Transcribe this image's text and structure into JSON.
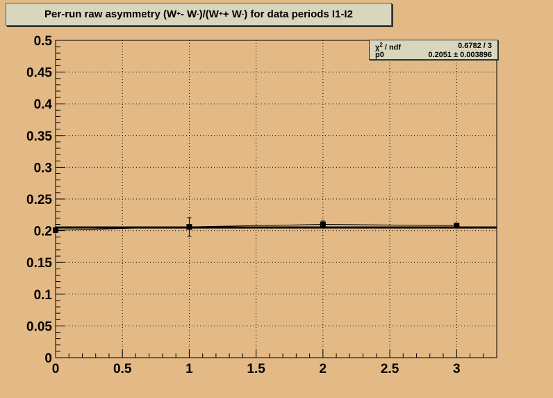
{
  "chart_data": {
    "type": "scatter",
    "title_prefix": "Per-run raw asymmetry (W",
    "title_mid1": " - W",
    "title_mid2": ")/(W",
    "title_mid3": " + W",
    "title_suffix": ") for data periods I1-I2",
    "title_sup_plus": "+",
    "title_sup_minus": "-",
    "xlim": [
      0,
      3.3
    ],
    "ylim": [
      0,
      0.5
    ],
    "x_ticks": [
      "0",
      "0.5",
      "1",
      "1.5",
      "2",
      "2.5",
      "3"
    ],
    "x_tick_values": [
      0,
      0.5,
      1,
      1.5,
      2,
      2.5,
      3
    ],
    "y_ticks": [
      "0",
      "0.05",
      "0.1",
      "0.15",
      "0.2",
      "0.25",
      "0.3",
      "0.35",
      "0.4",
      "0.45",
      "0.5"
    ],
    "y_tick_values": [
      0,
      0.05,
      0.1,
      0.15,
      0.2,
      0.25,
      0.3,
      0.35,
      0.4,
      0.45,
      0.5
    ],
    "grid": true,
    "points": [
      {
        "x": 0,
        "y": 0.201,
        "err": 0.004
      },
      {
        "x": 1,
        "y": 0.206,
        "err": 0.0145
      },
      {
        "x": 2,
        "y": 0.21,
        "err": 0.0055
      },
      {
        "x": 3,
        "y": 0.208,
        "err": 0.004
      }
    ],
    "fit": {
      "type": "constant",
      "value": 0.2051,
      "error": 0.003896
    },
    "stats": {
      "chi2_label": "χ",
      "chi2_sup": "2",
      "chi2_label_suffix": " / ndf",
      "chi2_value": "0.6782 / 3",
      "p0_label": "p0",
      "p0_value": "0.2051 ± 0.003896"
    }
  }
}
